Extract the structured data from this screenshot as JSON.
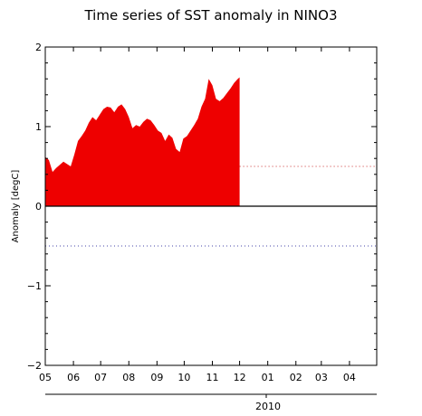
{
  "chart_data": {
    "type": "area",
    "title": "Time series of SST anomaly in NINO3",
    "xlabel": "",
    "ylabel": "Anomaly [degC]",
    "ylim": [
      -2,
      2
    ],
    "xlim": [
      "2009-05-01",
      "2010-05-01"
    ],
    "yticks": [
      "−2",
      "−1",
      "0",
      "1",
      "2"
    ],
    "xticks": [
      "05",
      "06",
      "07",
      "08",
      "09",
      "10",
      "11",
      "12",
      "01",
      "02",
      "03",
      "04"
    ],
    "year_label": "2010",
    "thresholds": [
      0.5,
      -0.5
    ],
    "fill_color": "#ee0000",
    "series": [
      {
        "x": [
          "2009-05-01",
          "2009-05-05",
          "2009-05-09",
          "2009-05-13",
          "2009-05-17",
          "2009-05-21",
          "2009-05-25",
          "2009-05-29",
          "2009-06-02",
          "2009-06-06",
          "2009-06-10",
          "2009-06-14",
          "2009-06-18",
          "2009-06-22",
          "2009-06-26",
          "2009-06-30",
          "2009-07-04",
          "2009-07-08",
          "2009-07-12",
          "2009-07-16",
          "2009-07-20",
          "2009-07-24",
          "2009-07-28",
          "2009-08-01",
          "2009-08-05",
          "2009-08-09",
          "2009-08-13",
          "2009-08-17",
          "2009-08-21",
          "2009-08-25",
          "2009-08-29",
          "2009-09-02",
          "2009-09-06",
          "2009-09-10",
          "2009-09-14",
          "2009-09-18",
          "2009-09-22",
          "2009-09-26",
          "2009-09-30",
          "2009-10-04",
          "2009-10-08",
          "2009-10-12",
          "2009-10-16",
          "2009-10-20",
          "2009-10-24",
          "2009-10-28",
          "2009-11-01",
          "2009-11-05",
          "2009-11-09",
          "2009-11-13",
          "2009-11-17",
          "2009-11-21",
          "2009-11-25",
          "2009-11-29",
          "2009-12-01"
        ],
        "values": [
          0.62,
          0.58,
          0.43,
          0.48,
          0.52,
          0.56,
          0.53,
          0.5,
          0.65,
          0.82,
          0.88,
          0.95,
          1.05,
          1.12,
          1.08,
          1.15,
          1.22,
          1.25,
          1.24,
          1.18,
          1.25,
          1.28,
          1.22,
          1.12,
          0.98,
          1.02,
          1.0,
          1.06,
          1.1,
          1.08,
          1.02,
          0.95,
          0.92,
          0.82,
          0.9,
          0.86,
          0.72,
          0.68,
          0.85,
          0.88,
          0.95,
          1.02,
          1.1,
          1.25,
          1.35,
          1.6,
          1.52,
          1.35,
          1.32,
          1.36,
          1.42,
          1.48,
          1.55,
          1.6,
          1.62
        ]
      }
    ]
  }
}
